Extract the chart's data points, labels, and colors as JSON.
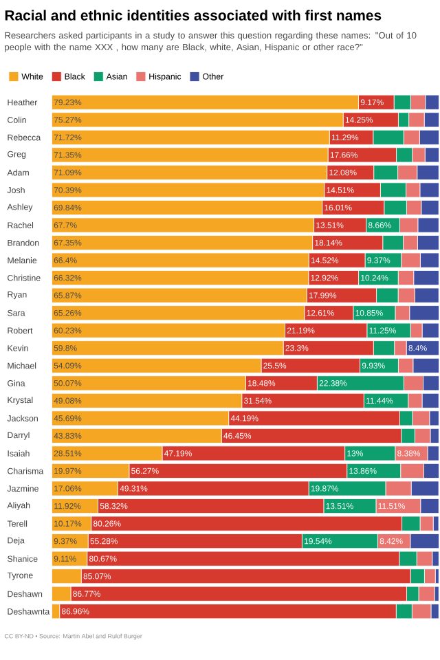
{
  "chart_data": {
    "type": "bar",
    "orientation": "horizontal",
    "stacked": true,
    "title": "Racial and ethnic identities associated with first names",
    "subtitle": "Researchers asked participants in a study to answer this question regarding these names: \"Out of 10 people with the name XXX , how many are Black, white, Asian, Hispanic or other race?\"",
    "annotations": [
      "CC BY-ND • Source: Martin Abel and Rulof Burger"
    ],
    "legend": "top left",
    "categories": [
      "Heather",
      "Colin",
      "Rebecca",
      "Greg",
      "Adam",
      "Josh",
      "Ashley",
      "Rachel",
      "Brandon",
      "Melanie",
      "Christine",
      "Ryan",
      "Sara",
      "Robert",
      "Kevin",
      "Michael",
      "Gina",
      "Krystal",
      "Jackson",
      "Darryl",
      "Isaiah",
      "Charisma",
      "Jazmine",
      "Aliyah",
      "Terell",
      "Deja",
      "Shanice",
      "Tyrone",
      "Deshawn",
      "Deshawnta"
    ],
    "series": [
      {
        "name": "White",
        "color": "#f5a623",
        "values": [
          79.23,
          75.27,
          71.72,
          71.35,
          71.09,
          70.39,
          69.84,
          67.7,
          67.35,
          66.4,
          66.32,
          65.87,
          65.26,
          60.23,
          59.8,
          54.09,
          50.07,
          49.08,
          45.69,
          43.83,
          28.51,
          19.97,
          17.06,
          11.92,
          10.17,
          9.37,
          9.11,
          7.6,
          4.9,
          2.0
        ],
        "value_labels": [
          "79.23%",
          "75.27%",
          "71.72%",
          "71.35%",
          "71.09%",
          "70.39%",
          "69.84%",
          "67.7%",
          "67.35%",
          "66.4%",
          "66.32%",
          "65.87%",
          "65.26%",
          "60.23%",
          "59.8%",
          "54.09%",
          "50.07%",
          "49.08%",
          "45.69%",
          "43.83%",
          "28.51%",
          "19.97%",
          "17.06%",
          "11.92%",
          "10.17%",
          "9.37%",
          "9.11%",
          null,
          null,
          null
        ]
      },
      {
        "name": "Black",
        "color": "#d63a2f",
        "values": [
          9.17,
          14.25,
          11.29,
          17.66,
          12.08,
          14.51,
          16.01,
          13.51,
          18.14,
          14.52,
          12.92,
          17.99,
          12.61,
          21.19,
          23.3,
          25.5,
          18.48,
          31.54,
          44.19,
          46.45,
          47.19,
          56.27,
          49.31,
          58.32,
          80.26,
          55.28,
          80.67,
          85.07,
          86.77,
          86.96
        ],
        "value_labels": [
          "9.17%",
          "14.25%",
          "11.29%",
          "17.66%",
          "12.08%",
          "14.51%",
          "16.01%",
          "13.51%",
          "18.14%",
          "14.52%",
          "12.92%",
          "17.99%",
          "12.61%",
          "21.19%",
          "23.3%",
          "25.5%",
          "18.48%",
          "31.54%",
          "44.19%",
          "46.45%",
          "47.19%",
          "56.27%",
          "49.31%",
          "58.32%",
          "80.26%",
          "55.28%",
          "80.67%",
          "85.07%",
          "86.77%",
          "86.96%"
        ]
      },
      {
        "name": "Asian",
        "color": "#0e9f6e",
        "values": [
          4.3,
          2.7,
          7.9,
          4.1,
          6.2,
          6.6,
          5.8,
          8.66,
          5.3,
          9.37,
          10.24,
          5.6,
          10.85,
          11.25,
          5.4,
          9.93,
          22.38,
          11.44,
          3.3,
          3.5,
          13,
          13.86,
          19.87,
          13.51,
          4.7,
          19.54,
          4.5,
          3.6,
          3.1,
          4.1
        ],
        "value_labels": [
          null,
          null,
          null,
          null,
          null,
          null,
          null,
          "8.66%",
          null,
          "9.37%",
          "10.24%",
          null,
          "10.85%",
          "11.25%",
          null,
          "9.93%",
          "22.38%",
          "11.44%",
          null,
          null,
          "13%",
          "13.86%",
          "19.87%",
          "13.51%",
          null,
          "19.54%",
          null,
          null,
          null,
          null
        ]
      },
      {
        "name": "Hispanic",
        "color": "#e8756f",
        "values": [
          3.8,
          4.0,
          4.1,
          3.3,
          5.0,
          3.6,
          3.8,
          4.7,
          3.7,
          4.9,
          4.0,
          4.3,
          3.7,
          3.0,
          3.1,
          3.8,
          5.0,
          3.6,
          4.4,
          4.0,
          8.38,
          6.0,
          6.6,
          11.51,
          3.4,
          8.42,
          4.0,
          2.8,
          4.1,
          4.9
        ],
        "value_labels": [
          null,
          null,
          null,
          null,
          null,
          null,
          null,
          null,
          null,
          null,
          null,
          null,
          null,
          null,
          null,
          null,
          null,
          null,
          null,
          null,
          "8.38%",
          null,
          null,
          "11.51%",
          null,
          "8.42%",
          null,
          null,
          null,
          null
        ]
      },
      {
        "name": "Other",
        "color": "#3f4fa0",
        "values": [
          3.5,
          3.8,
          5.0,
          3.6,
          5.6,
          4.9,
          4.5,
          5.4,
          5.5,
          4.8,
          6.5,
          6.2,
          7.6,
          4.3,
          8.4,
          6.7,
          4.1,
          4.3,
          2.4,
          2.2,
          2.9,
          3.9,
          7.1,
          4.7,
          1.4,
          7.4,
          1.7,
          0.9,
          1.1,
          2.0
        ],
        "value_labels": [
          null,
          null,
          null,
          null,
          null,
          null,
          null,
          null,
          null,
          null,
          null,
          null,
          null,
          null,
          "8.4%",
          null,
          null,
          null,
          null,
          null,
          null,
          null,
          null,
          null,
          null,
          null,
          null,
          null,
          null,
          null
        ]
      }
    ]
  }
}
